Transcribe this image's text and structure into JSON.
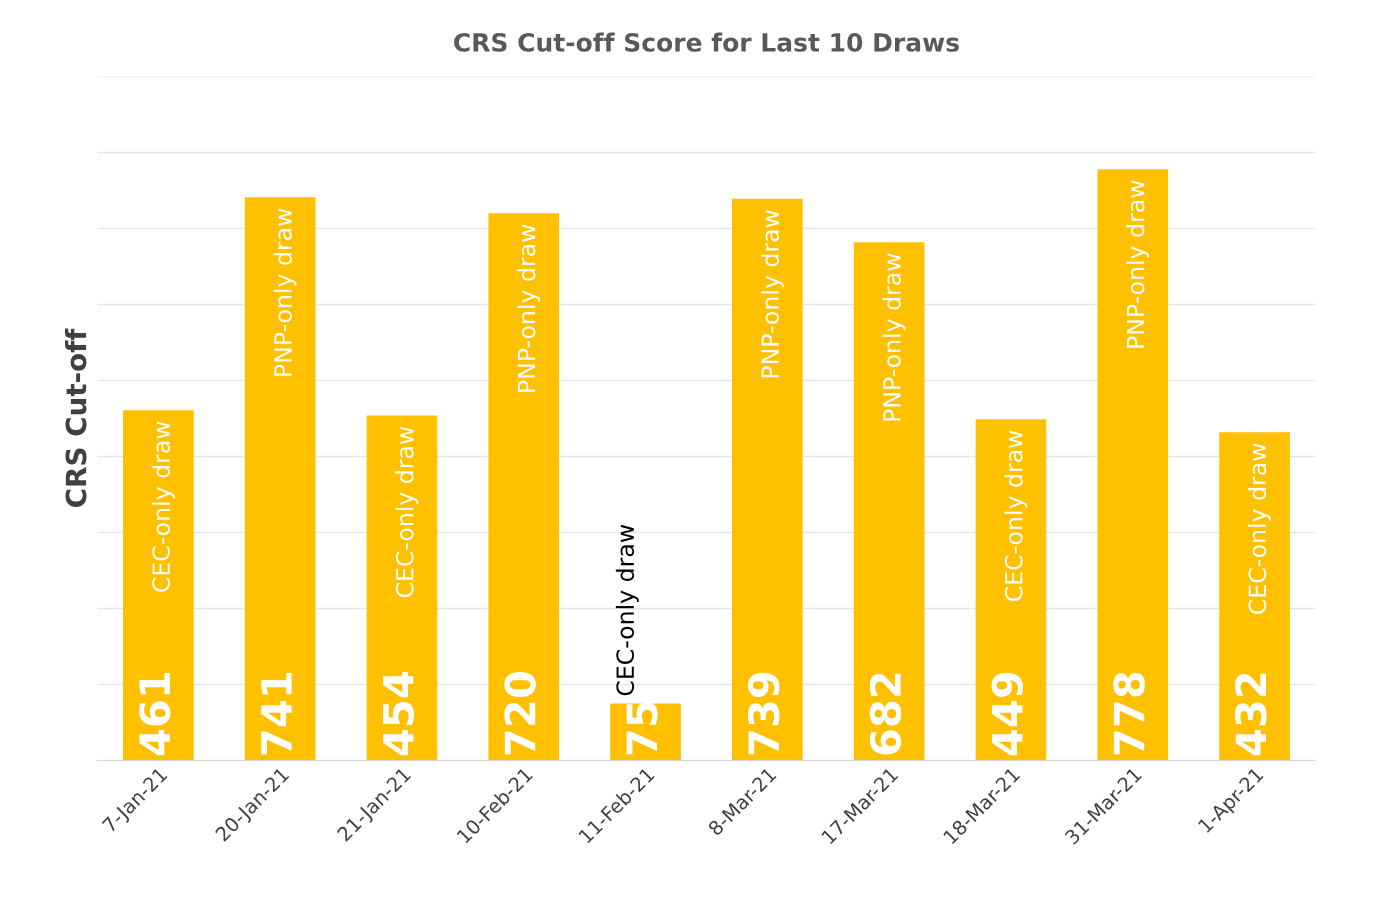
{
  "chart_data": {
    "type": "bar",
    "title": "CRS Cut-off Score for Last 10 Draws",
    "ylabel": "CRS Cut-off",
    "categories": [
      "7-Jan-21",
      "20-Jan-21",
      "21-Jan-21",
      "10-Feb-21",
      "11-Feb-21",
      "8-Mar-21",
      "17-Mar-21",
      "18-Mar-21",
      "31-Mar-21",
      "1-Apr-21"
    ],
    "values": [
      461,
      741,
      454,
      720,
      75,
      739,
      682,
      449,
      778,
      432
    ],
    "color": "#ffc000",
    "data_labels": true,
    "ylim": [
      0,
      900
    ],
    "yticks": [
      {
        "value": 0,
        "label": null
      },
      {
        "value": 100,
        "label": null
      },
      {
        "value": 200,
        "label": null
      },
      {
        "value": 300,
        "label": null
      },
      {
        "value": 400,
        "label": null
      },
      {
        "value": 500,
        "label": null
      },
      {
        "value": 600,
        "label": null
      },
      {
        "value": 700,
        "label": null
      },
      {
        "value": 800,
        "label": null
      },
      {
        "value": 900,
        "label": null
      }
    ],
    "tick_labels": "x",
    "grid": "y",
    "annotations": [
      "CEC-only draw",
      "PNP-only draw",
      "CEC-only draw",
      "PNP-only draw",
      "CEC-only draw",
      "PNP-only draw",
      "PNP-only draw",
      "CEC-only draw",
      "PNP-only draw",
      "CEC-only draw"
    ]
  }
}
